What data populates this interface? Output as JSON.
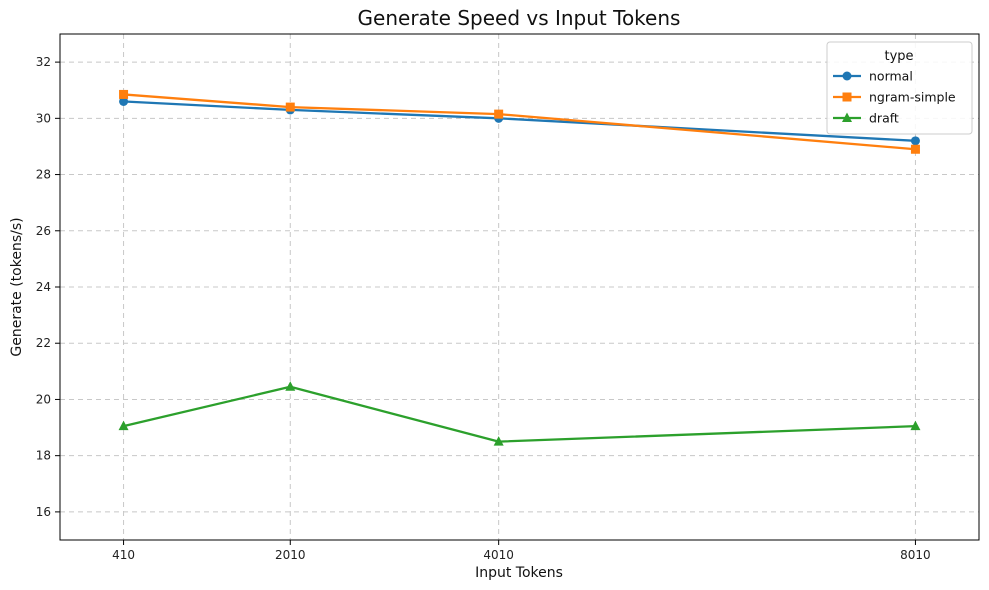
{
  "chart_data": {
    "type": "line",
    "title": "Generate Speed vs Input Tokens",
    "xlabel": "Input Tokens",
    "ylabel": "Generate (tokens/s)",
    "x": [
      410,
      2010,
      4010,
      8010
    ],
    "x_tick_labels": [
      "410",
      "2010",
      "4010",
      "8010"
    ],
    "xlim": [
      -200,
      8620
    ],
    "ylim": [
      15,
      33
    ],
    "y_ticks": [
      16,
      18,
      20,
      22,
      24,
      26,
      28,
      30,
      32
    ],
    "y_tick_labels": [
      "16",
      "18",
      "20",
      "22",
      "24",
      "26",
      "28",
      "30",
      "32"
    ],
    "grid": true,
    "legend": {
      "title": "type",
      "placement": "top-right"
    },
    "series": [
      {
        "name": "normal",
        "values": [
          30.6,
          30.3,
          30.0,
          29.2
        ],
        "color": "#1f77b4",
        "marker": "circle"
      },
      {
        "name": "ngram-simple",
        "values": [
          30.85,
          30.4,
          30.15,
          28.9
        ],
        "color": "#ff7f0e",
        "marker": "square"
      },
      {
        "name": "draft",
        "values": [
          19.05,
          20.45,
          18.5,
          19.05
        ],
        "color": "#2ca02c",
        "marker": "triangle"
      }
    ]
  }
}
